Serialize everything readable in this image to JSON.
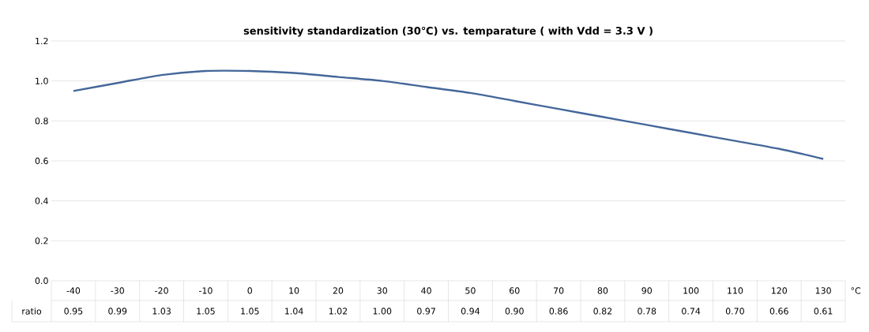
{
  "chart_data": {
    "type": "line",
    "title": "sensitivity standardization (30℃) vs. temparature ( with Vdd = 3.3 V )",
    "xlabel": "°C",
    "categories": [
      "-40",
      "-30",
      "-20",
      "-10",
      "0",
      "10",
      "20",
      "30",
      "40",
      "50",
      "60",
      "70",
      "80",
      "90",
      "100",
      "110",
      "120",
      "130"
    ],
    "series": [
      {
        "name": "ratio",
        "color": "#44679a",
        "values": [
          0.95,
          0.99,
          1.03,
          1.05,
          1.05,
          1.04,
          1.02,
          1.0,
          0.97,
          0.94,
          0.9,
          0.86,
          0.82,
          0.78,
          0.74,
          0.7,
          0.66,
          0.61
        ],
        "value_labels": [
          "0.95",
          "0.99",
          "1.03",
          "1.05",
          "1.05",
          "1.04",
          "1.02",
          "1.00",
          "0.97",
          "0.94",
          "0.90",
          "0.86",
          "0.82",
          "0.78",
          "0.74",
          "0.70",
          "0.66",
          "0.61"
        ]
      }
    ],
    "ylim": [
      0,
      1.2
    ],
    "yticks": [
      {
        "value": 0,
        "label": "0.0"
      },
      {
        "value": 0.2,
        "label": "0.2"
      },
      {
        "value": 0.4,
        "label": "0.4"
      },
      {
        "value": 0.6,
        "label": "0.6"
      },
      {
        "value": 0.8,
        "label": "0.8"
      },
      {
        "value": 1.0,
        "label": "1.0"
      },
      {
        "value": 1.2,
        "label": "1.2"
      }
    ],
    "grid": "y",
    "marker": "none",
    "line_style": "solid"
  }
}
